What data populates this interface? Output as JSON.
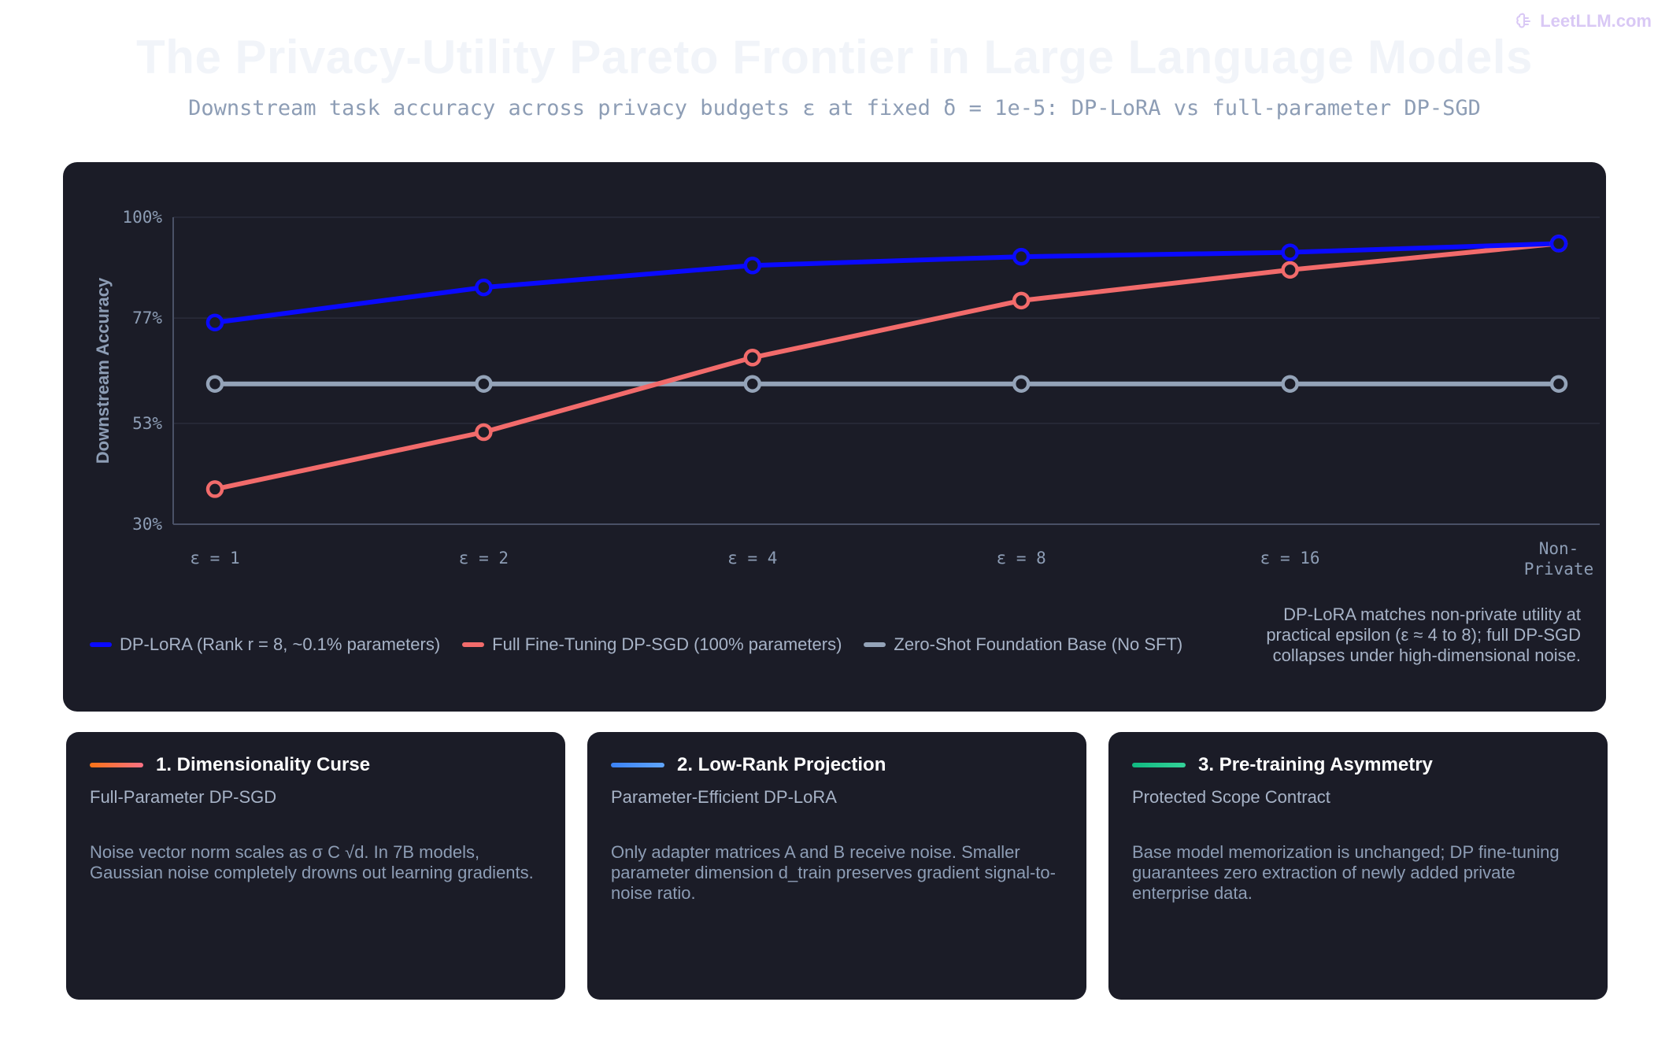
{
  "brand": {
    "name": "LeetLLM.com"
  },
  "header": {
    "title": "The Privacy-Utility Pareto Frontier in Large Language Models",
    "subtitle": "Downstream task accuracy across privacy budgets ε at fixed δ = 1e-5: DP-LoRA vs full-parameter DP-SGD"
  },
  "colors": {
    "dp_lora": "#0a0aff",
    "full_ft": "#f26b6b",
    "zero_shot": "#94a3b8",
    "accent_curse": "#f97316",
    "accent_lowrank": "#3b82f6",
    "accent_asym": "#10b981"
  },
  "chart_data": {
    "type": "line",
    "x": [
      "ε = 1",
      "ε = 2",
      "ε = 4",
      "ε = 8",
      "ε = 16",
      "Non-Private"
    ],
    "ylabel": "Downstream Accuracy",
    "ylim": [
      30,
      100
    ],
    "yticks": [
      100,
      77,
      53,
      30
    ],
    "ytick_labels": [
      "100%",
      "77%",
      "53%",
      "30%"
    ],
    "grid": true,
    "legend_position": "bottom-left",
    "series": [
      {
        "name": "DP-LoRA (Rank r = 8, ~0.1% parameters)",
        "color": "#0a0aff",
        "values": [
          76,
          84,
          89,
          91,
          92,
          94
        ]
      },
      {
        "name": "Full Fine-Tuning DP-SGD (100% parameters)",
        "color": "#f26b6b",
        "values": [
          38,
          51,
          68,
          81,
          88,
          94
        ]
      },
      {
        "name": "Zero-Shot Foundation Base (No SFT)",
        "color": "#94a3b8",
        "values": [
          62,
          62,
          62,
          62,
          62,
          62
        ]
      }
    ],
    "annotation": "DP-LoRA matches non-private utility at practical epsilon (ε ≈ 4 to 8); full DP-SGD collapses under high-dimensional noise."
  },
  "cards": [
    {
      "title": "1. Dimensionality Curse",
      "subtitle": "Full-Parameter DP-SGD",
      "body": "Noise vector norm scales as σ C √d. In 7B models, Gaussian noise completely drowns out learning gradients."
    },
    {
      "title": "2. Low-Rank Projection",
      "subtitle": "Parameter-Efficient DP-LoRA",
      "body": "Only adapter matrices A and B receive noise. Smaller parameter dimension d_train preserves gradient signal-to-noise ratio."
    },
    {
      "title": "3. Pre-training Asymmetry",
      "subtitle": "Protected Scope Contract",
      "body": "Base model memorization is unchanged; DP fine-tuning guarantees zero extraction of newly added private enterprise data."
    }
  ]
}
